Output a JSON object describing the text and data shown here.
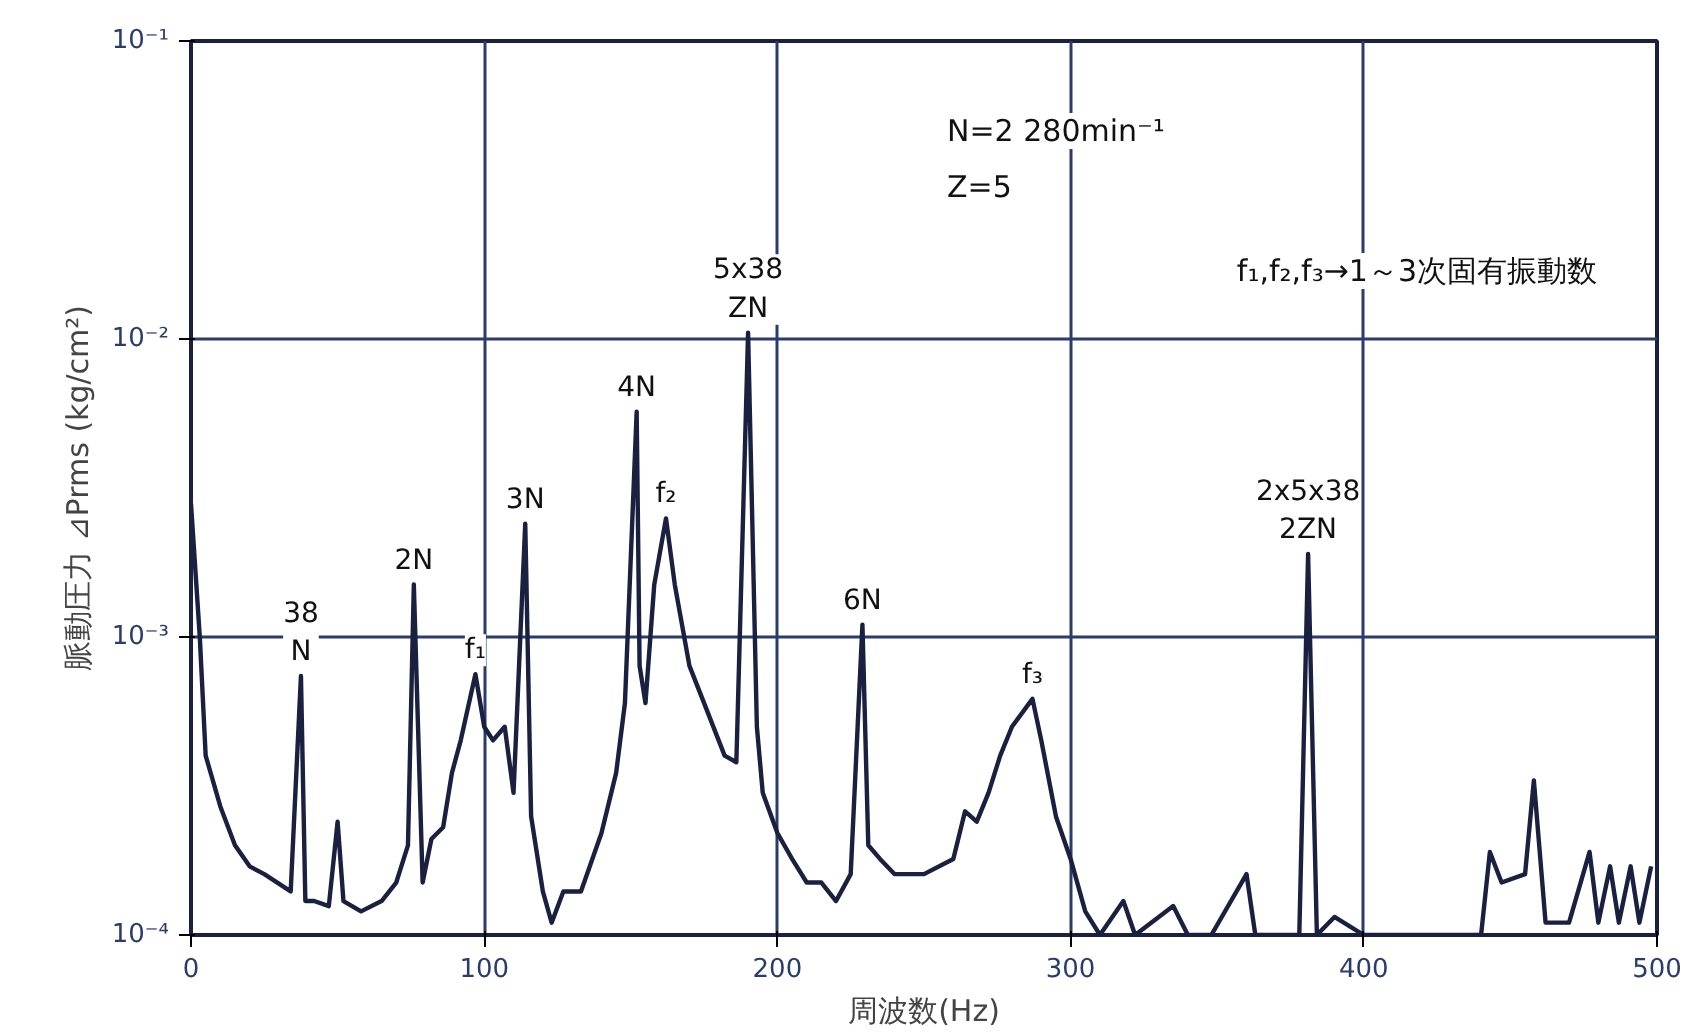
{
  "chart_data": {
    "type": "line",
    "xlabel": "周波数(Hz)",
    "ylabel": "脈動圧力 ⊿Prms (kg/cm²)",
    "log": "y",
    "grid": true,
    "xlim": [
      0,
      500
    ],
    "ylim": [
      0.0001,
      0.1
    ],
    "xticks": [
      0,
      100,
      200,
      300,
      400,
      500
    ],
    "yticks": [
      {
        "value": 0.0001,
        "label": "10⁻⁴"
      },
      {
        "value": 0.001,
        "label": "10⁻³"
      },
      {
        "value": 0.01,
        "label": "10⁻²"
      },
      {
        "value": 0.1,
        "label": "10⁻¹"
      }
    ],
    "series": [
      {
        "color": "#1a2040",
        "x": [
          0,
          3,
          5,
          10,
          15,
          20,
          25,
          34,
          37.5,
          39,
          42,
          47,
          50,
          52,
          58,
          65,
          70,
          74,
          76,
          79,
          82,
          86,
          89,
          92,
          97,
          100,
          103,
          107,
          110,
          114,
          116,
          120,
          123,
          127,
          133,
          140,
          145,
          148,
          152,
          153,
          155,
          158,
          162,
          165,
          170,
          175,
          182,
          186,
          190,
          193,
          195,
          200,
          205,
          210,
          215,
          220,
          225,
          229,
          231,
          235,
          240,
          250,
          260,
          264,
          268,
          272,
          276,
          280,
          287,
          290,
          295,
          300,
          305,
          310,
          318,
          322,
          335,
          340,
          348,
          360,
          363,
          378,
          381,
          384,
          390,
          400,
          410,
          440,
          443,
          447,
          455,
          458,
          462,
          470,
          477,
          480,
          484,
          487,
          491,
          494,
          498
        ],
        "values": [
          0.0028,
          0.001,
          0.0004,
          0.00027,
          0.0002,
          0.00017,
          0.00016,
          0.00014,
          0.00074,
          0.00013,
          0.00013,
          0.000125,
          0.00024,
          0.00013,
          0.00012,
          0.00013,
          0.00015,
          0.0002,
          0.0015,
          0.00015,
          0.00021,
          0.00023,
          0.00035,
          0.00045,
          0.00075,
          0.0005,
          0.00045,
          0.0005,
          0.0003,
          0.0024,
          0.00025,
          0.00014,
          0.00011,
          0.00014,
          0.00014,
          0.00022,
          0.00035,
          0.0006,
          0.0057,
          0.0008,
          0.0006,
          0.0015,
          0.0025,
          0.0015,
          0.0008,
          0.0006,
          0.0004,
          0.00038,
          0.0105,
          0.0005,
          0.0003,
          0.00022,
          0.00018,
          0.00015,
          0.00015,
          0.00013,
          0.00016,
          0.0011,
          0.0002,
          0.00018,
          0.00016,
          0.00016,
          0.00018,
          0.00026,
          0.00024,
          0.0003,
          0.0004,
          0.0005,
          0.00062,
          0.00045,
          0.00025,
          0.00018,
          0.00012,
          0.0001,
          0.00013,
          0.0001,
          0.000125,
          0.0001,
          0.0001,
          0.00016,
          0.0001,
          0.0001,
          0.0019,
          0.0001,
          0.000115,
          0.0001,
          0.0001,
          0.0001,
          0.00019,
          0.00015,
          0.00016,
          0.00033,
          0.00011,
          0.00011,
          0.00019,
          0.00011,
          0.00017,
          0.00011,
          0.00017,
          0.00011,
          0.00017
        ]
      }
    ],
    "annotations": [
      {
        "text": "38\nN",
        "x": 37.5,
        "y": 0.00074
      },
      {
        "text": "2N",
        "x": 76,
        "y": 0.0015
      },
      {
        "text": "f₁",
        "x": 97,
        "y": 0.00075
      },
      {
        "text": "3N",
        "x": 114,
        "y": 0.0024
      },
      {
        "text": "4N",
        "x": 152,
        "y": 0.0057
      },
      {
        "text": "f₂",
        "x": 162,
        "y": 0.0025
      },
      {
        "text": "5x38\nZN",
        "x": 190,
        "y": 0.0105
      },
      {
        "text": "6N",
        "x": 229,
        "y": 0.0011
      },
      {
        "text": "f₃",
        "x": 287,
        "y": 0.00062
      },
      {
        "text": "2x5x38\n2ZN",
        "x": 381,
        "y": 0.0019
      },
      "N=2 280min⁻¹",
      "Z=5",
      "f₁,f₂,f₃→1～3次固有振動数"
    ]
  }
}
